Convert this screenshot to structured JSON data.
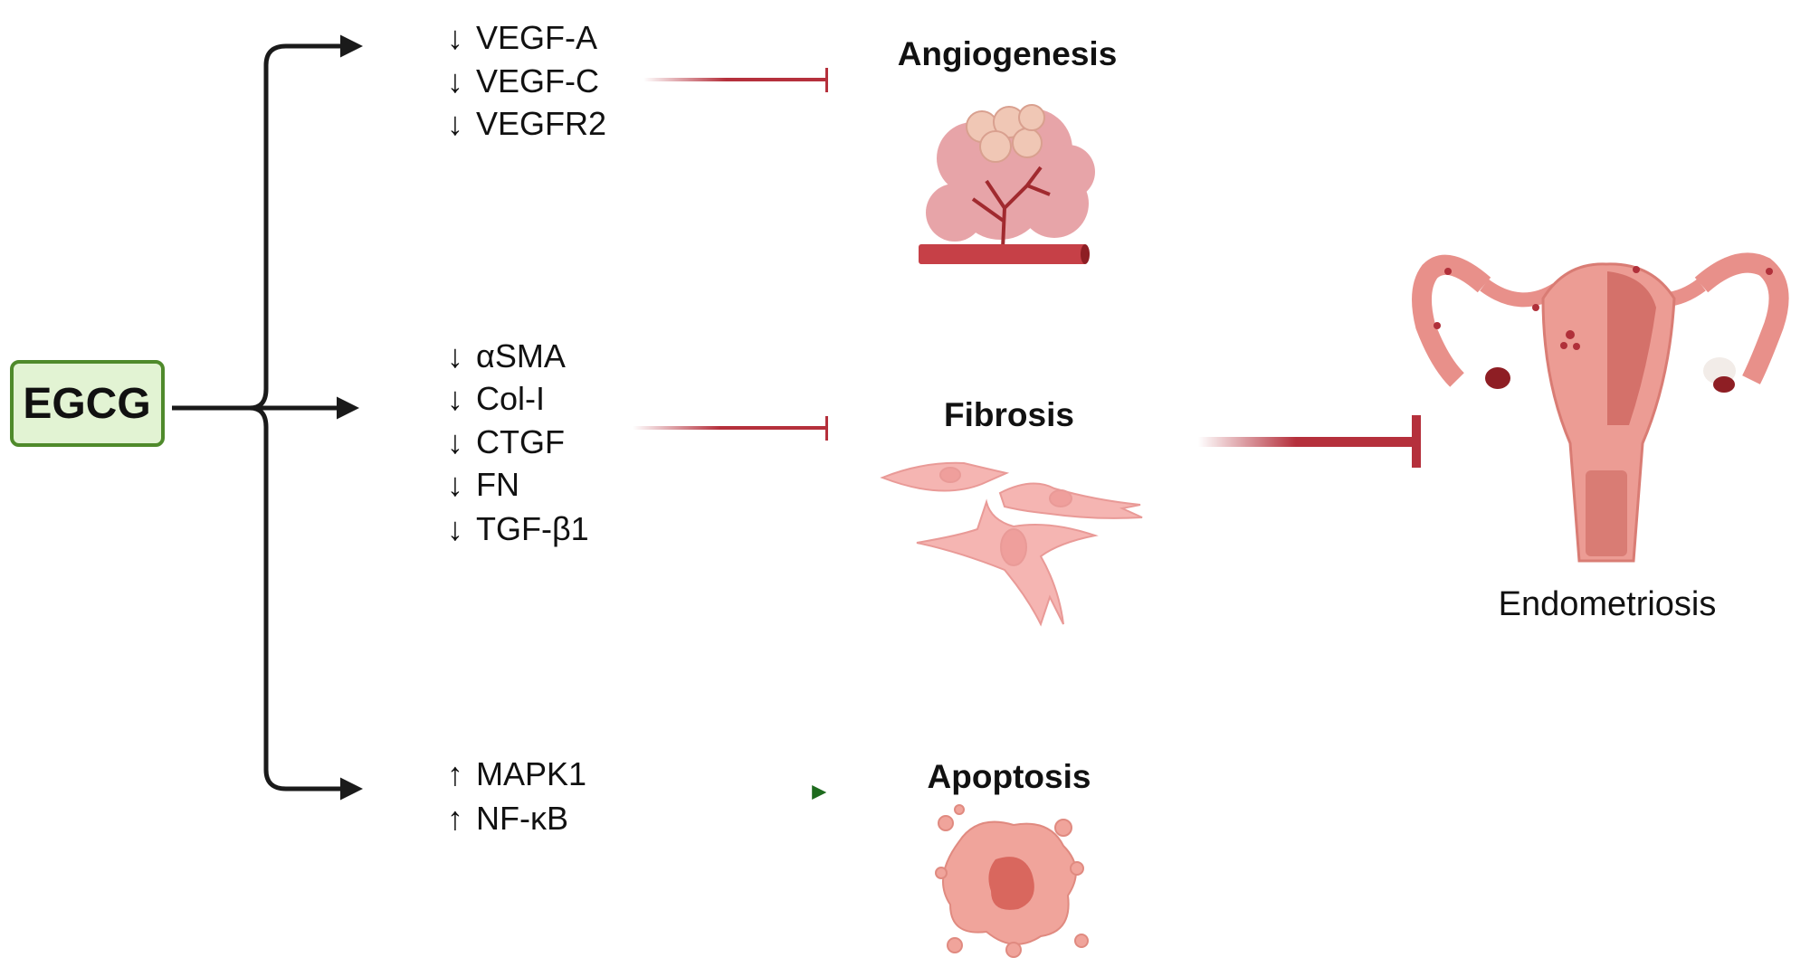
{
  "source_node": {
    "label": "EGCG",
    "fill": "#e2f3d3",
    "border": "#4f8a2b"
  },
  "branches": [
    {
      "markers": [
        {
          "direction": "down",
          "glyph": "↓",
          "label": "VEGF-A"
        },
        {
          "direction": "down",
          "glyph": "↓",
          "label": "VEGF-C"
        },
        {
          "direction": "down",
          "glyph": "↓",
          "label": "VEGFR2"
        }
      ],
      "effect": "inhibits",
      "process": "Angiogenesis",
      "icon": "tumor-angiogenesis-icon"
    },
    {
      "markers": [
        {
          "direction": "down",
          "glyph": "↓",
          "label": "αSMA"
        },
        {
          "direction": "down",
          "glyph": "↓",
          "label": "Col-I"
        },
        {
          "direction": "down",
          "glyph": "↓",
          "label": "CTGF"
        },
        {
          "direction": "down",
          "glyph": "↓",
          "label": "FN"
        },
        {
          "direction": "down",
          "glyph": "↓",
          "label": "TGF-β1"
        }
      ],
      "effect": "inhibits",
      "process": "Fibrosis",
      "icon": "fibroblast-cells-icon"
    },
    {
      "markers": [
        {
          "direction": "up",
          "glyph": "↑",
          "label": "MAPK1"
        },
        {
          "direction": "up",
          "glyph": "↑",
          "label": "NF-κB"
        }
      ],
      "effect": "promotes",
      "process": "Apoptosis",
      "icon": "apoptotic-cell-icon"
    }
  ],
  "target": {
    "label": "Endometriosis",
    "icon": "uterus-icon",
    "effect": "inhibits"
  },
  "colors": {
    "inhibit": "#b5303c",
    "promote": "#1e6b1e",
    "connector": "#1a1a1a",
    "tissue": "#e8908a"
  }
}
